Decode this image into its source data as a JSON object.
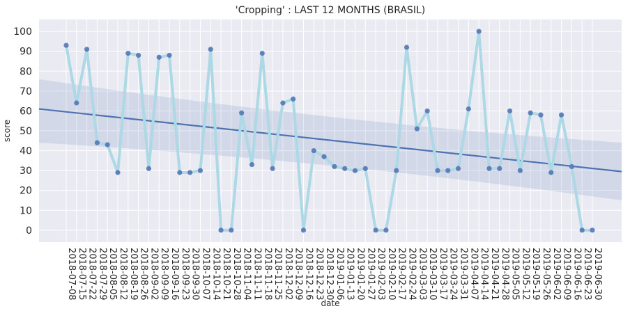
{
  "chart_data": {
    "type": "line",
    "title": "'Cropping' : LAST 12 MONTHS (BRASIL)",
    "xlabel": "date",
    "ylabel": "score",
    "ylim": [
      -6,
      106
    ],
    "yticks": [
      0,
      10,
      20,
      30,
      40,
      50,
      60,
      70,
      80,
      90,
      100
    ],
    "grid": true,
    "x": [
      "2018-07-08",
      "2018-07-15",
      "2018-07-22",
      "2018-07-29",
      "2018-08-05",
      "2018-08-12",
      "2018-08-19",
      "2018-08-26",
      "2018-09-02",
      "2018-09-09",
      "2018-09-16",
      "2018-09-23",
      "2018-09-30",
      "2018-10-07",
      "2018-10-14",
      "2018-10-21",
      "2018-10-28",
      "2018-11-04",
      "2018-11-11",
      "2018-11-18",
      "2018-11-25",
      "2018-12-02",
      "2018-12-09",
      "2018-12-16",
      "2018-12-23",
      "2018-12-30",
      "2019-01-06",
      "2019-01-13",
      "2019-01-20",
      "2019-01-27",
      "2019-02-03",
      "2019-02-10",
      "2019-02-17",
      "2019-02-24",
      "2019-03-03",
      "2019-03-10",
      "2019-03-17",
      "2019-03-24",
      "2019-03-31",
      "2019-04-07",
      "2019-04-14",
      "2019-04-21",
      "2019-04-28",
      "2019-05-05",
      "2019-05-12",
      "2019-05-19",
      "2019-05-26",
      "2019-06-02",
      "2019-06-09",
      "2019-06-16",
      "2019-06-23",
      "2019-06-30"
    ],
    "values": [
      93,
      64,
      91,
      44,
      43,
      29,
      89,
      88,
      31,
      87,
      88,
      29,
      29,
      30,
      91,
      0,
      0,
      59,
      33,
      89,
      31,
      64,
      66,
      0,
      40,
      37,
      32,
      31,
      30,
      31,
      0,
      0,
      30,
      92,
      51,
      60,
      30,
      30,
      31,
      61,
      100,
      31,
      31,
      60,
      30,
      59,
      58,
      29,
      58,
      32,
      0,
      0
    ],
    "trend": {
      "start": 61,
      "end": 29.5,
      "ci_start": [
        44,
        76
      ],
      "ci_end": [
        15,
        44
      ]
    },
    "colors": {
      "line": "#add8e6",
      "points": "#4c72b0",
      "trend": "#4c72b0",
      "band": "#4c72b0",
      "background": "#eaeaf2",
      "grid": "#ffffff"
    }
  }
}
